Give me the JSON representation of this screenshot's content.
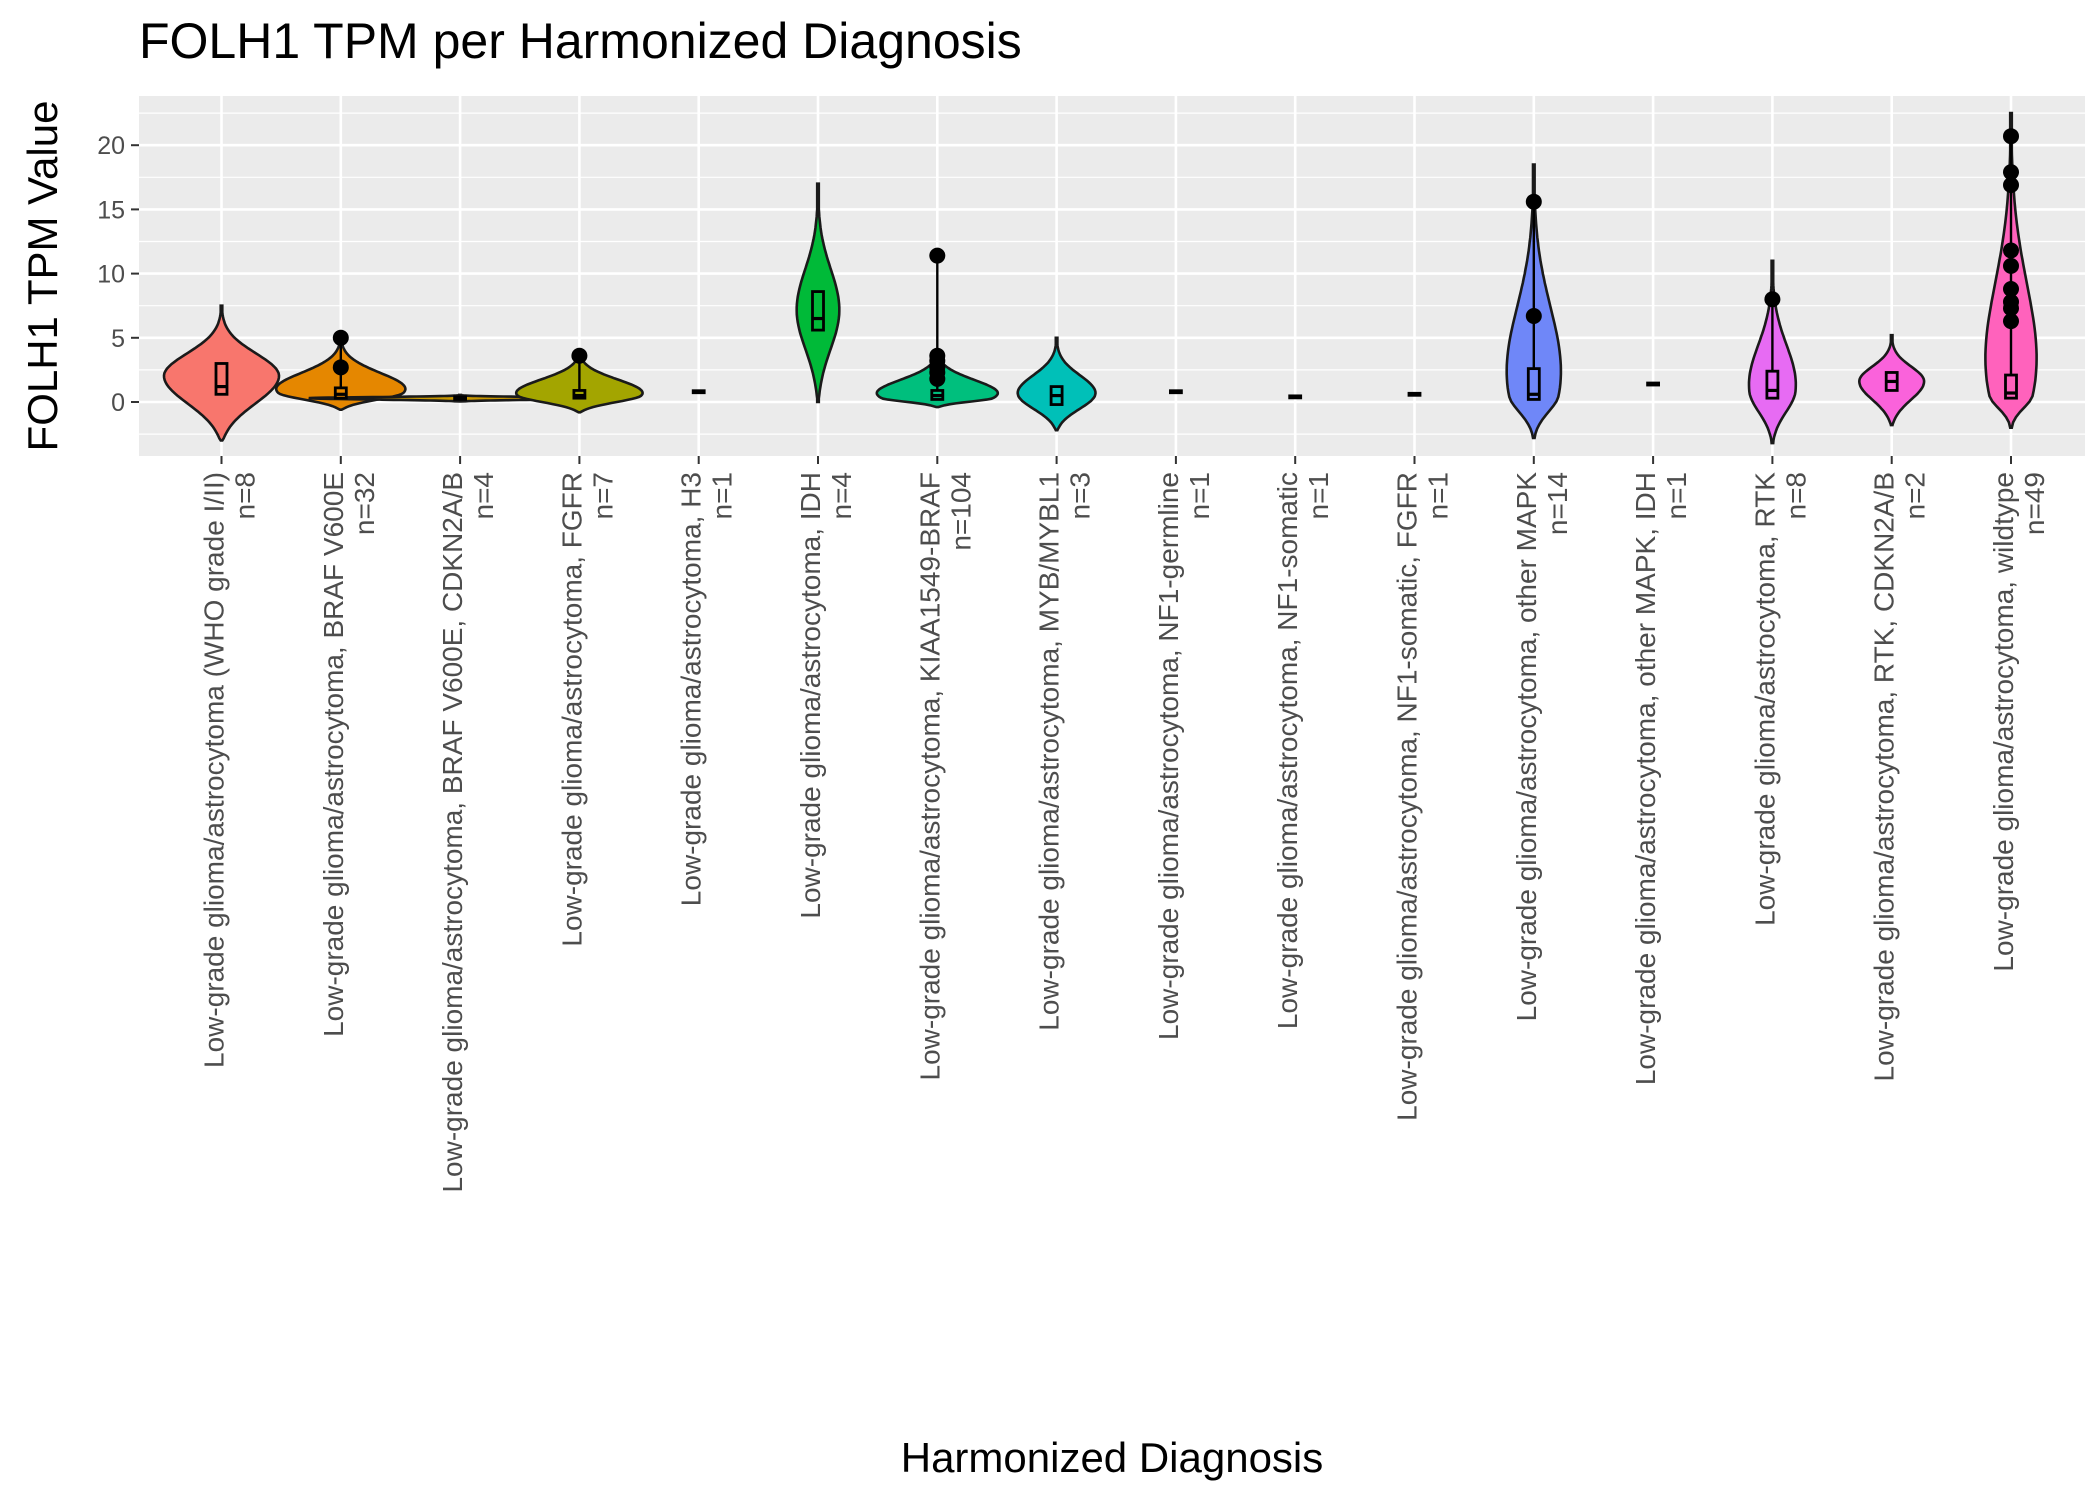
{
  "chart_data": {
    "type": "violin",
    "title": "FOLH1 TPM per Harmonized Diagnosis",
    "xlabel": "Harmonized Diagnosis",
    "ylabel": "FOLH1 TPM Value",
    "ylim": [
      -4.3,
      24
    ],
    "yticks": [
      0,
      5,
      10,
      15,
      20
    ],
    "grid": true,
    "legend": "none",
    "categories": [
      {
        "label": "Low-grade glioma/astrocytoma (WHO grade I/II)",
        "n": "n=8",
        "color": "#F8766D",
        "violin": {
          "min": -3.0,
          "max": 7.5,
          "mode": 2.0,
          "width": 0.8
        },
        "box": {
          "q1": 0.6,
          "median": 1.2,
          "q3": 3.0
        },
        "outliers": []
      },
      {
        "label": "Low-grade glioma/astrocytoma, BRAF V600E",
        "n": "n=32",
        "color": "#E58700",
        "violin": {
          "min": -0.6,
          "max": 5.0,
          "mode": 0.7,
          "width": 1.0
        },
        "box": {
          "q1": 0.3,
          "median": 0.6,
          "q3": 1.1
        },
        "outliers": [
          2.7,
          5.0
        ]
      },
      {
        "label": "Low-grade glioma/astrocytoma, BRAF V600E, CDKN2A/B",
        "n": "n=4",
        "color": "#C99800",
        "violin": {
          "min": 0.05,
          "max": 0.55,
          "mode": 0.3,
          "width": 2.1
        },
        "box": {
          "q1": 0.2,
          "median": 0.3,
          "q3": 0.4
        },
        "outliers": []
      },
      {
        "label": "Low-grade glioma/astrocytoma, FGFR",
        "n": "n=7",
        "color": "#A3A500",
        "violin": {
          "min": -0.8,
          "max": 4.0,
          "mode": 0.5,
          "width": 0.95
        },
        "box": {
          "q1": 0.3,
          "median": 0.5,
          "q3": 0.9
        },
        "outliers": [
          3.6
        ]
      },
      {
        "label": "Low-grade glioma/astrocytoma, H3",
        "n": "n=1",
        "color": "#6BB100",
        "violin": null,
        "box": {
          "q1": 0.8,
          "median": 0.8,
          "q3": 0.8
        },
        "outliers": []
      },
      {
        "label": "Low-grade glioma/astrocytoma, IDH",
        "n": "n=4",
        "color": "#00BA38",
        "violin": {
          "min": 0.0,
          "max": 17.0,
          "mode": 7.0,
          "width": 0.3
        },
        "box": {
          "q1": 5.6,
          "median": 6.5,
          "q3": 8.6
        },
        "outliers": []
      },
      {
        "label": "Low-grade glioma/astrocytoma, KIAA1549-BRAF",
        "n": "n=104",
        "color": "#00BF7D",
        "violin": {
          "min": -0.4,
          "max": 4.0,
          "mode": 0.3,
          "width": 1.0
        },
        "box": {
          "q1": 0.2,
          "median": 0.5,
          "q3": 0.9
        },
        "outliers": [
          1.8,
          2.3,
          2.7,
          3.2,
          3.6,
          11.4
        ]
      },
      {
        "label": "Low-grade glioma/astrocytoma, MYB/MYBL1",
        "n": "n=3",
        "color": "#00C0B8",
        "violin": {
          "min": -2.2,
          "max": 5.0,
          "mode": 0.6,
          "width": 0.55
        },
        "box": {
          "q1": -0.2,
          "median": 0.5,
          "q3": 1.2
        },
        "outliers": []
      },
      {
        "label": "Low-grade glioma/astrocytoma, NF1-germline",
        "n": "n=1",
        "color": "#00BCE3",
        "violin": null,
        "box": {
          "q1": 0.8,
          "median": 0.8,
          "q3": 0.8
        },
        "outliers": []
      },
      {
        "label": "Low-grade glioma/astrocytoma, NF1-somatic",
        "n": "n=1",
        "color": "#00B0F6",
        "violin": null,
        "box": {
          "q1": 0.4,
          "median": 0.4,
          "q3": 0.4
        },
        "outliers": []
      },
      {
        "label": "Low-grade glioma/astrocytoma, NF1-somatic, FGFR",
        "n": "n=1",
        "color": "#35A2FF",
        "violin": null,
        "box": {
          "q1": 0.6,
          "median": 0.6,
          "q3": 0.6
        },
        "outliers": []
      },
      {
        "label": "Low-grade glioma/astrocytoma, other MAPK",
        "n": "n=14",
        "color": "#6F87F8",
        "violin": {
          "min": -2.8,
          "max": 18.5,
          "mode": 0.5,
          "width": 0.45
        },
        "box": {
          "q1": 0.2,
          "median": 0.6,
          "q3": 2.6
        },
        "outliers": [
          6.7,
          15.6
        ]
      },
      {
        "label": "Low-grade glioma/astrocytoma, other MAPK, IDH",
        "n": "n=1",
        "color": "#C77CFF",
        "violin": null,
        "box": {
          "q1": 1.4,
          "median": 1.4,
          "q3": 1.4
        },
        "outliers": []
      },
      {
        "label": "Low-grade glioma/astrocytoma, RTK",
        "n": "n=8",
        "color": "#E76BF3",
        "violin": {
          "min": -3.2,
          "max": 11.0,
          "mode": 0.8,
          "width": 0.35
        },
        "box": {
          "q1": 0.3,
          "median": 0.9,
          "q3": 2.4
        },
        "outliers": [
          8.0
        ]
      },
      {
        "label": "Low-grade glioma/astrocytoma, RTK, CDKN2A/B",
        "n": "n=2",
        "color": "#FA62DB",
        "violin": {
          "min": -1.8,
          "max": 5.2,
          "mode": 1.6,
          "width": 0.45
        },
        "box": {
          "q1": 0.9,
          "median": 1.6,
          "q3": 2.3
        },
        "outliers": []
      },
      {
        "label": "Low-grade glioma/astrocytoma, wildtype",
        "n": "n=49",
        "color": "#FF62BC",
        "violin": {
          "min": -2.0,
          "max": 22.5,
          "mode": 0.5,
          "width": 0.45
        },
        "box": {
          "q1": 0.3,
          "median": 0.7,
          "q3": 2.1
        },
        "outliers": [
          6.3,
          7.3,
          7.8,
          8.8,
          10.6,
          11.8,
          16.9,
          17.9,
          20.7
        ]
      }
    ]
  }
}
